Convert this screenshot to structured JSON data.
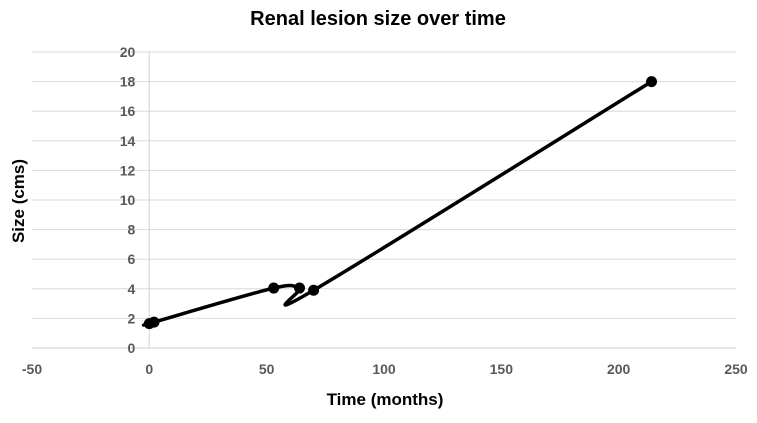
{
  "chart_data": {
    "type": "scatter",
    "title": "Renal lesion size over time",
    "xlabel": "Time (months)",
    "ylabel": "Size (cms)",
    "xlim": [
      -50,
      250
    ],
    "ylim": [
      0,
      20
    ],
    "x_ticks": [
      -50,
      0,
      50,
      100,
      150,
      200,
      250
    ],
    "y_ticks": [
      0,
      2,
      4,
      6,
      8,
      10,
      12,
      14,
      16,
      18,
      20
    ],
    "grid": true,
    "legend": "none",
    "line_style": "smoothed",
    "colors": {
      "series": "#000000",
      "grid": "#d9d9d9",
      "tick_label": "#595959"
    },
    "series": [
      {
        "x": [
          0,
          2,
          53,
          64,
          70,
          214
        ],
        "y": [
          1.65,
          1.75,
          4.05,
          4.05,
          3.9,
          18.0
        ]
      }
    ]
  }
}
